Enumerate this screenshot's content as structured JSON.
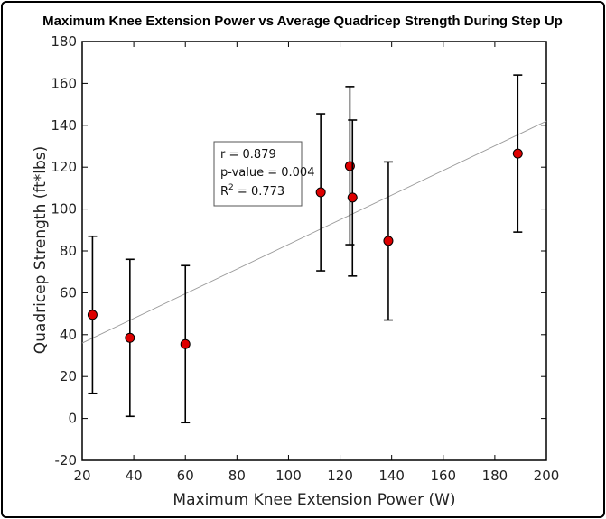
{
  "chart_data": {
    "type": "scatter",
    "title": "Maximum Knee Extension Power vs Average Quadricep Strength During Step Up",
    "xlabel": "Maximum Knee Extension Power (W)",
    "ylabel": "Quadricep Strength (ft*lbs)",
    "xlim": [
      20,
      200
    ],
    "ylim": [
      -20,
      180
    ],
    "xticks": [
      20,
      40,
      60,
      80,
      100,
      120,
      140,
      160,
      180,
      200
    ],
    "yticks": [
      -20,
      0,
      20,
      40,
      60,
      80,
      100,
      120,
      140,
      160,
      180
    ],
    "points": [
      {
        "x": 24.0,
        "y": 49.5,
        "err_low": 12,
        "err_high": 87
      },
      {
        "x": 38.5,
        "y": 38.5,
        "err_low": 1,
        "err_high": 76
      },
      {
        "x": 60.0,
        "y": 35.5,
        "err_low": -2,
        "err_high": 73
      },
      {
        "x": 112.5,
        "y": 108.0,
        "err_low": 70.5,
        "err_high": 145.5
      },
      {
        "x": 123.8,
        "y": 120.5,
        "err_low": 83,
        "err_high": 158.5
      },
      {
        "x": 124.8,
        "y": 105.5,
        "err_low": 68,
        "err_high": 142.5
      },
      {
        "x": 138.7,
        "y": 84.8,
        "err_low": 47,
        "err_high": 122.5
      },
      {
        "x": 188.9,
        "y": 126.5,
        "err_low": 89,
        "err_high": 164
      }
    ],
    "trendline": {
      "x": [
        20,
        200
      ],
      "y": [
        36,
        142
      ]
    },
    "stats": {
      "r": "r = 0.879",
      "p": "p-value = 0.004",
      "r2_prefix": "R",
      "r2_sup": "2",
      "r2_suffix": " = 0.773"
    },
    "grid": false,
    "marker_color": "#dd0000",
    "line_color": "#9a9a9a"
  }
}
